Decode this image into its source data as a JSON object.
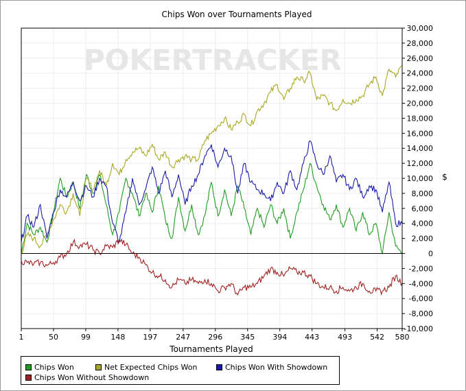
{
  "chart_data": {
    "type": "line",
    "title": "Chips Won over Tournaments Played",
    "xlabel": "Tournaments Played",
    "ylabel": "$",
    "watermark": "POKERTRACKER",
    "xlim": [
      1,
      580
    ],
    "ylim": [
      -10000,
      30000
    ],
    "x_ticks": [
      1,
      50,
      99,
      148,
      197,
      247,
      296,
      345,
      394,
      443,
      493,
      542,
      580
    ],
    "y_ticks": [
      30000,
      28000,
      26000,
      24000,
      22000,
      20000,
      18000,
      16000,
      14000,
      12000,
      10000,
      8000,
      6000,
      4000,
      2000,
      0,
      -2000,
      -4000,
      -6000,
      -8000,
      -10000
    ],
    "y_tick_labels": [
      "30,000",
      "28,000",
      "26,000",
      "24,000",
      "22,000",
      "20,000",
      "18,000",
      "16,000",
      "14,000",
      "12,000",
      "10,000",
      "8,000",
      "6,000",
      "4,000",
      "2,000",
      "0",
      "-2,000",
      "-4,000",
      "-6,000",
      "-8,000",
      "-10,000"
    ],
    "grid": true,
    "legend_position": "bottom-left",
    "series": [
      {
        "name": "Chips Won",
        "color": "#1f9d1f",
        "x": [
          1,
          10,
          20,
          30,
          40,
          50,
          60,
          70,
          80,
          90,
          100,
          110,
          120,
          130,
          140,
          150,
          160,
          170,
          180,
          190,
          200,
          210,
          220,
          230,
          240,
          250,
          260,
          270,
          280,
          290,
          300,
          310,
          320,
          330,
          340,
          350,
          360,
          370,
          380,
          390,
          400,
          410,
          420,
          430,
          440,
          450,
          460,
          470,
          480,
          490,
          500,
          510,
          520,
          530,
          540,
          550,
          560,
          570,
          580
        ],
        "values": [
          0,
          4000,
          2500,
          3500,
          1500,
          5500,
          10000,
          7500,
          9500,
          6000,
          10500,
          8000,
          10500,
          6500,
          2500,
          5500,
          10000,
          8000,
          5000,
          8000,
          5500,
          9000,
          4500,
          2000,
          7500,
          3000,
          6500,
          2500,
          5000,
          9500,
          5000,
          8500,
          5000,
          9000,
          6000,
          2500,
          6000,
          3500,
          6500,
          4000,
          6000,
          2000,
          5500,
          8500,
          12000,
          9000,
          6500,
          4500,
          6500,
          3500,
          6000,
          3000,
          5500,
          2500,
          4000,
          0,
          5500,
          1000,
          0
        ]
      },
      {
        "name": "Net Expected Chips Won",
        "color": "#a8a820",
        "x": [
          1,
          10,
          20,
          30,
          40,
          50,
          60,
          70,
          80,
          90,
          100,
          110,
          120,
          130,
          140,
          150,
          160,
          170,
          180,
          190,
          200,
          210,
          220,
          230,
          240,
          250,
          260,
          270,
          280,
          290,
          300,
          310,
          320,
          330,
          340,
          350,
          360,
          370,
          380,
          390,
          400,
          410,
          420,
          430,
          440,
          450,
          460,
          470,
          480,
          490,
          500,
          510,
          520,
          530,
          540,
          550,
          560,
          570,
          580
        ],
        "values": [
          0,
          2500,
          2000,
          1000,
          2500,
          4500,
          6500,
          5500,
          8000,
          5000,
          10000,
          8500,
          11000,
          9000,
          12000,
          10500,
          12500,
          13500,
          14000,
          13000,
          14500,
          12500,
          13500,
          11500,
          12500,
          13000,
          12500,
          12500,
          15000,
          16000,
          17000,
          18000,
          16500,
          17500,
          18500,
          17000,
          19000,
          20000,
          21500,
          22500,
          20500,
          22000,
          23500,
          23000,
          24000,
          20500,
          21000,
          20000,
          19000,
          20500,
          20000,
          20500,
          21000,
          22500,
          23500,
          21000,
          24500,
          23500,
          25000
        ]
      },
      {
        "name": "Chips Won With Showdown",
        "color": "#1a1aaa",
        "x": [
          1,
          10,
          20,
          30,
          40,
          50,
          60,
          70,
          80,
          90,
          100,
          110,
          120,
          130,
          140,
          150,
          160,
          170,
          180,
          190,
          200,
          210,
          220,
          230,
          240,
          250,
          260,
          270,
          280,
          290,
          300,
          310,
          320,
          330,
          340,
          350,
          360,
          370,
          380,
          390,
          400,
          410,
          420,
          430,
          440,
          450,
          460,
          470,
          480,
          490,
          500,
          510,
          520,
          530,
          540,
          550,
          560,
          570,
          580
        ],
        "values": [
          1500,
          5000,
          3500,
          6500,
          2000,
          5500,
          8500,
          7500,
          9500,
          7000,
          9000,
          7500,
          10000,
          9000,
          4000,
          1500,
          5500,
          10000,
          6500,
          8500,
          11500,
          8000,
          11000,
          7500,
          10500,
          6500,
          9000,
          10500,
          13000,
          14500,
          11500,
          14000,
          13000,
          8000,
          12000,
          9500,
          8500,
          8000,
          7000,
          9500,
          8000,
          11000,
          8500,
          12000,
          15000,
          12000,
          10500,
          13000,
          9500,
          10500,
          8500,
          10000,
          7500,
          9000,
          8500,
          5500,
          9500,
          4000,
          4000
        ]
      },
      {
        "name": "Chips Won Without Showdown",
        "color": "#a02020",
        "x": [
          1,
          10,
          20,
          30,
          40,
          50,
          60,
          70,
          80,
          90,
          100,
          110,
          120,
          130,
          140,
          150,
          160,
          170,
          180,
          190,
          200,
          210,
          220,
          230,
          240,
          250,
          260,
          270,
          280,
          290,
          300,
          310,
          320,
          330,
          340,
          350,
          360,
          370,
          380,
          390,
          400,
          410,
          420,
          430,
          440,
          450,
          460,
          470,
          480,
          490,
          500,
          510,
          520,
          530,
          540,
          550,
          560,
          570,
          580
        ],
        "values": [
          -1000,
          -1200,
          -1400,
          -1200,
          -1600,
          -1200,
          -500,
          0,
          1500,
          1000,
          1200,
          500,
          0,
          1000,
          800,
          1800,
          1200,
          0,
          -500,
          -1500,
          -2500,
          -3000,
          -3500,
          -4500,
          -3500,
          -4000,
          -3500,
          -4000,
          -3500,
          -4000,
          -5000,
          -4500,
          -4000,
          -5500,
          -4500,
          -4500,
          -4000,
          -3000,
          -2000,
          -2500,
          -3000,
          -2000,
          -2500,
          -2500,
          -3000,
          -4000,
          -4500,
          -4500,
          -5000,
          -4500,
          -5000,
          -4500,
          -4000,
          -5000,
          -5000,
          -5000,
          -4500,
          -3000,
          -4000
        ]
      }
    ]
  }
}
